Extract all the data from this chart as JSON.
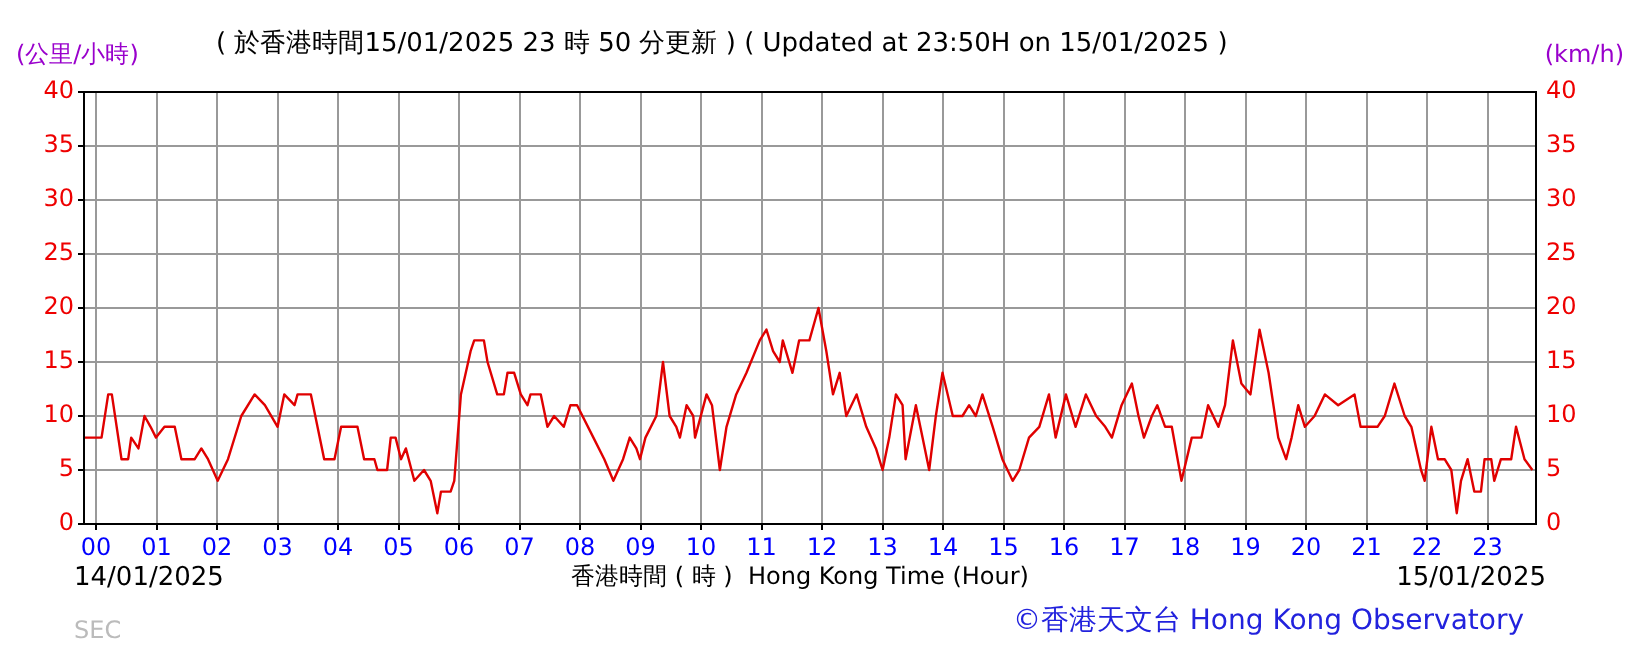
{
  "chart_data": {
    "type": "line",
    "title": "( 於香港時間15/01/2025 23 時 50 分更新 ) ( Updated at 23:50H on 15/01/2025 )",
    "xlabel": "香港時間 ( 時 )  Hong Kong Time (Hour)",
    "ylabel": "(公里/小時)",
    "y2label": "(km/h)",
    "annotations": [
      "14/01/2025",
      "15/01/2025",
      "SEC",
      "©香港天文台 Hong Kong Observatory"
    ],
    "x": [
      -0.2,
      0.09,
      0.2,
      0.26,
      0.42,
      0.53,
      0.58,
      0.7,
      0.8,
      0.9,
      0.99,
      1.13,
      1.3,
      1.41,
      1.63,
      1.74,
      1.85,
      2.01,
      2.18,
      2.4,
      2.62,
      2.79,
      3.0,
      3.11,
      3.28,
      3.33,
      3.55,
      3.77,
      3.94,
      4.05,
      4.32,
      4.43,
      4.6,
      4.65,
      4.81,
      4.87,
      4.95,
      5.04,
      5.12,
      5.26,
      5.42,
      5.53,
      5.64,
      5.7,
      5.86,
      5.92,
      6.03,
      6.19,
      6.25,
      6.41,
      6.47,
      6.63,
      6.74,
      6.8,
      6.91,
      7.02,
      7.13,
      7.18,
      7.35,
      7.46,
      7.57,
      7.73,
      7.84,
      7.95,
      8.22,
      8.4,
      8.55,
      8.71,
      8.82,
      8.93,
      8.99,
      9.08,
      9.26,
      9.37,
      9.48,
      9.59,
      9.65,
      9.76,
      9.87,
      9.9,
      10.09,
      10.18,
      10.31,
      10.42,
      10.58,
      10.75,
      10.97,
      11.08,
      11.19,
      11.3,
      11.35,
      11.51,
      11.62,
      11.79,
      11.94,
      12.07,
      12.18,
      12.29,
      12.4,
      12.57,
      12.73,
      12.89,
      13.0,
      13.11,
      13.22,
      13.33,
      13.38,
      13.55,
      13.66,
      13.77,
      13.88,
      13.99,
      14.16,
      14.32,
      14.43,
      14.54,
      14.65,
      14.82,
      14.98,
      15.15,
      15.26,
      15.42,
      15.59,
      15.75,
      15.86,
      16.03,
      16.19,
      16.36,
      16.53,
      16.68,
      16.79,
      16.95,
      17.12,
      17.23,
      17.32,
      17.45,
      17.54,
      17.67,
      17.78,
      17.94,
      18.11,
      18.27,
      18.38,
      18.55,
      18.66,
      18.79,
      18.93,
      19.08,
      19.23,
      19.38,
      19.54,
      19.67,
      19.76,
      19.87,
      19.98,
      20.14,
      20.31,
      20.53,
      20.8,
      20.9,
      21.18,
      21.3,
      21.46,
      21.63,
      21.74,
      21.9,
      21.96,
      22.07,
      22.18,
      22.29,
      22.4,
      22.49,
      22.56,
      22.67,
      22.78,
      22.89,
      22.95,
      23.06,
      23.11,
      23.22,
      23.39,
      23.47,
      23.61,
      23.74
    ],
    "series": [
      {
        "color": "#e00000",
        "values": [
          8,
          8,
          12,
          12,
          6,
          6,
          8,
          7,
          10,
          9,
          8,
          9,
          9,
          6,
          6,
          7,
          6,
          4,
          6,
          10,
          12,
          11,
          9,
          12,
          11,
          12,
          12,
          6,
          6,
          9,
          9,
          6,
          6,
          5,
          5,
          8,
          8,
          6,
          7,
          4,
          5,
          4,
          1,
          3,
          3,
          4,
          12,
          16,
          17,
          17,
          15,
          12,
          12,
          14,
          14,
          12,
          11,
          12,
          12,
          9,
          10,
          9,
          11,
          11,
          8,
          6,
          4,
          6,
          8,
          7,
          6,
          8,
          10,
          15,
          10,
          9,
          8,
          11,
          10,
          8,
          12,
          11,
          5,
          9,
          12,
          14,
          17,
          18,
          16,
          15,
          17,
          14,
          17,
          17,
          20,
          16,
          12,
          14,
          10,
          12,
          9,
          7,
          5,
          8,
          12,
          11,
          6,
          11,
          8,
          5,
          10,
          14,
          10,
          10,
          11,
          10,
          12,
          9,
          6,
          4,
          5,
          8,
          9,
          12,
          8,
          12,
          9,
          12,
          10,
          9,
          8,
          11,
          13,
          10,
          8,
          10,
          11,
          9,
          9,
          4,
          8,
          8,
          11,
          9,
          11,
          17,
          13,
          12,
          18,
          14,
          8,
          6,
          8,
          11,
          9,
          10,
          12,
          11,
          12,
          9,
          9,
          10,
          13,
          10,
          9,
          5,
          4,
          9,
          6,
          6,
          5,
          1,
          4,
          6,
          3,
          3,
          6,
          6,
          4,
          6,
          6,
          9,
          6,
          5
        ]
      }
    ],
    "xlim": [
      -0.2,
      23.8
    ],
    "xticks": [
      {
        "value": 0,
        "label": "00"
      },
      {
        "value": 1,
        "label": "01"
      },
      {
        "value": 2,
        "label": "02"
      },
      {
        "value": 3,
        "label": "03"
      },
      {
        "value": 4,
        "label": "04"
      },
      {
        "value": 5,
        "label": "05"
      },
      {
        "value": 6,
        "label": "06"
      },
      {
        "value": 7,
        "label": "07"
      },
      {
        "value": 8,
        "label": "08"
      },
      {
        "value": 9,
        "label": "09"
      },
      {
        "value": 10,
        "label": "10"
      },
      {
        "value": 11,
        "label": "11"
      },
      {
        "value": 12,
        "label": "12"
      },
      {
        "value": 13,
        "label": "13"
      },
      {
        "value": 14,
        "label": "14"
      },
      {
        "value": 15,
        "label": "15"
      },
      {
        "value": 16,
        "label": "16"
      },
      {
        "value": 17,
        "label": "17"
      },
      {
        "value": 18,
        "label": "18"
      },
      {
        "value": 19,
        "label": "19"
      },
      {
        "value": 20,
        "label": "20"
      },
      {
        "value": 21,
        "label": "21"
      },
      {
        "value": 22,
        "label": "22"
      },
      {
        "value": 23,
        "label": "23"
      }
    ],
    "ylim": [
      0,
      40
    ],
    "yticks": [
      0,
      5,
      10,
      15,
      20,
      25,
      30,
      35,
      40
    ],
    "y2lim": [
      0,
      40
    ],
    "y2ticks": [
      0,
      5,
      10,
      15,
      20,
      25,
      30,
      35,
      40
    ],
    "grid": true,
    "legend": false,
    "marker": "none",
    "line_style": "solid"
  }
}
